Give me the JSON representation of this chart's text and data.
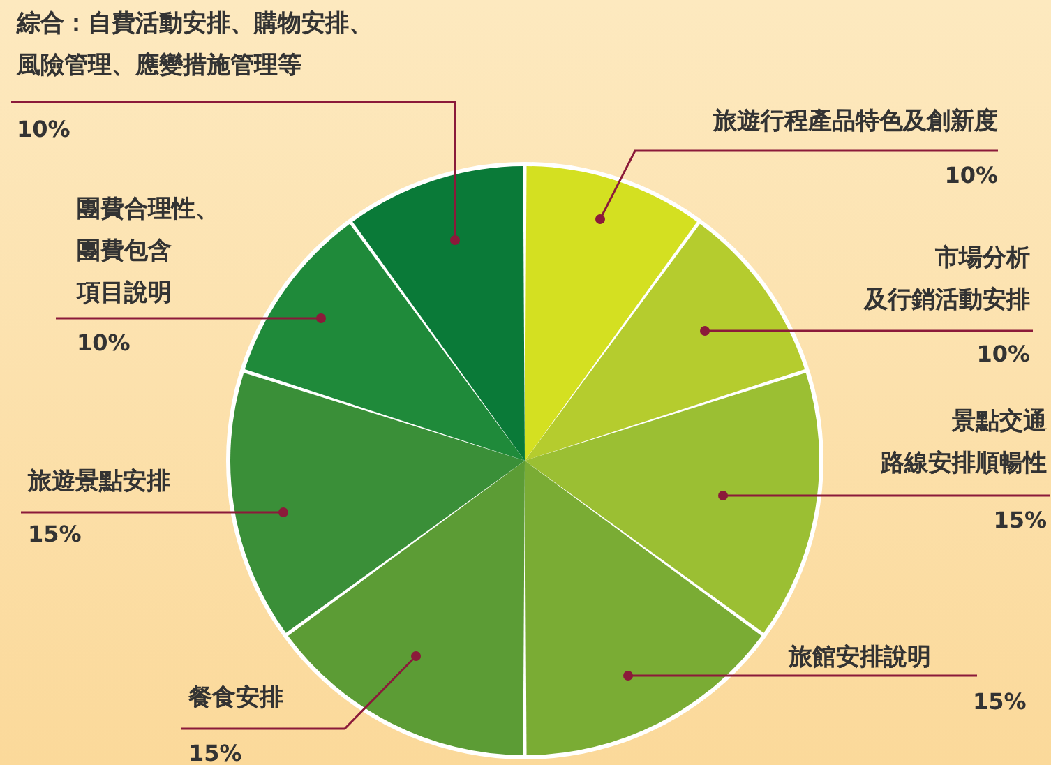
{
  "chart_data": {
    "type": "pie",
    "categories": [
      "旅遊行程產品特色及創新度",
      "市場分析及行銷活動安排",
      "景點交通路線安排順暢性",
      "旅館安排說明",
      "餐食安排",
      "旅遊景點安排",
      "團費合理性、團費包含項目說明",
      "綜合：自費活動安排、購物安排、風險管理、應變措施管理等"
    ],
    "values": [
      10,
      10,
      15,
      15,
      15,
      15,
      10,
      10
    ],
    "value_labels": [
      "10%",
      "10%",
      "15%",
      "15%",
      "15%",
      "15%",
      "10%",
      "10%"
    ],
    "colors": [
      "#d4e021",
      "#b5cc2e",
      "#9bbf33",
      "#7aac34",
      "#5c9c35",
      "#3a8f38",
      "#1f8a3a",
      "#0a7a38"
    ]
  }
}
